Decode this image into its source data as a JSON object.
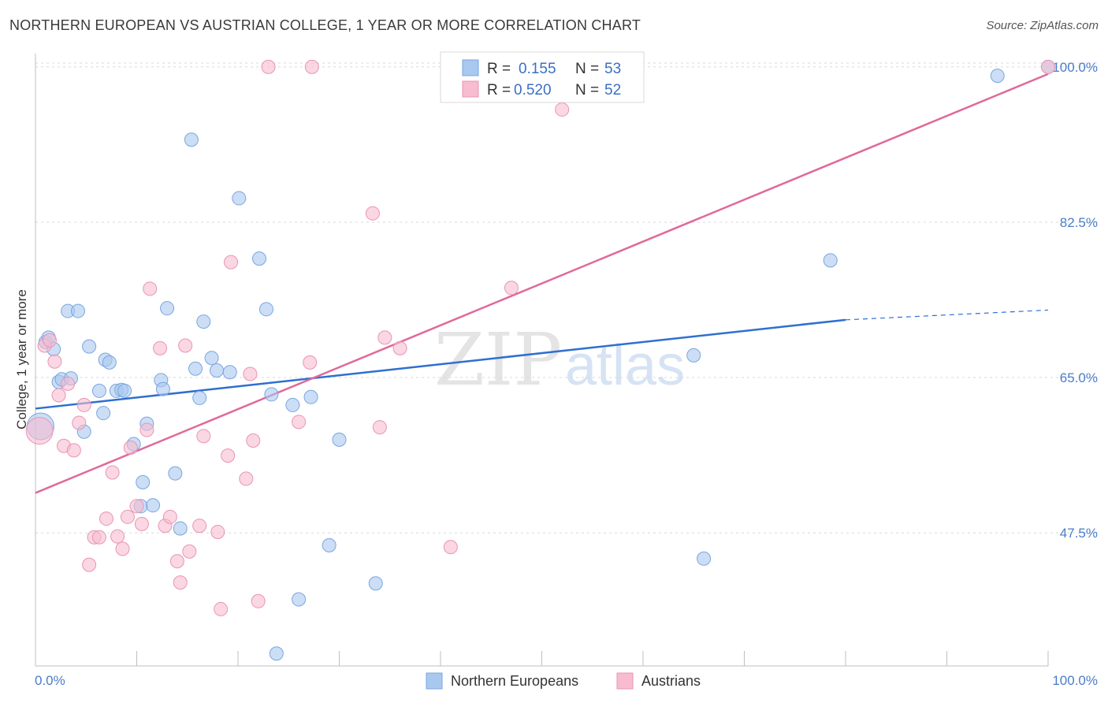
{
  "title": "NORTHERN EUROPEAN VS AUSTRIAN COLLEGE, 1 YEAR OR MORE CORRELATION CHART",
  "source": "Source: ZipAtlas.com",
  "watermark": {
    "zip": "ZIP",
    "atlas": "atlas"
  },
  "colors": {
    "blue_fill": "#a9c8f0",
    "blue_stroke": "#7aa6de",
    "blue_line": "#2f6fd0",
    "pink_fill": "#f7bcd0",
    "pink_stroke": "#e995b3",
    "pink_line": "#e0699a",
    "grid": "#d8d8d8",
    "tick_text": "#4a7cc9"
  },
  "stats": [
    {
      "series": "Northern Europeans",
      "r_label": "R =",
      "r_value": "0.155",
      "n_label": "N =",
      "n_value": "53"
    },
    {
      "series": "Austrians",
      "r_label": "R =",
      "r_value": "0.520",
      "n_label": "N =",
      "n_value": "52"
    }
  ],
  "chart_data": {
    "type": "scatter",
    "title": "NORTHERN EUROPEAN VS AUSTRIAN COLLEGE, 1 YEAR OR MORE CORRELATION CHART",
    "xlabel": "",
    "ylabel": "College, 1 year or more",
    "xlim": [
      0,
      100
    ],
    "ylim": [
      32.5,
      101.5
    ],
    "x_tick_labels": [
      "0.0%",
      "100.0%"
    ],
    "y_ticks": [
      47.5,
      65.0,
      82.5,
      100.0
    ],
    "y_tick_labels": [
      "47.5%",
      "65.0%",
      "82.5%",
      "100.0%"
    ],
    "grid": "horizontal dashed",
    "legend_position": "bottom-center",
    "series": [
      {
        "name": "Northern Europeans",
        "color": "#a9c8f0",
        "trend": {
          "x": [
            0,
            80
          ],
          "y": [
            61.5,
            71.5
          ],
          "dashed_to": [
            100,
            72.6
          ]
        },
        "points": [
          [
            0.5,
            59.5
          ],
          [
            1.0,
            69.0
          ],
          [
            1.3,
            69.5
          ],
          [
            1.8,
            68.2
          ],
          [
            2.3,
            64.5
          ],
          [
            2.6,
            64.8
          ],
          [
            3.2,
            72.5
          ],
          [
            3.5,
            64.9
          ],
          [
            4.2,
            72.5
          ],
          [
            4.8,
            58.9
          ],
          [
            5.3,
            68.5
          ],
          [
            6.3,
            63.5
          ],
          [
            6.7,
            61.0
          ],
          [
            6.9,
            67.0
          ],
          [
            7.3,
            66.7
          ],
          [
            8.0,
            63.5
          ],
          [
            8.5,
            63.6
          ],
          [
            8.8,
            63.5
          ],
          [
            9.7,
            57.5
          ],
          [
            10.4,
            50.5
          ],
          [
            10.6,
            53.2
          ],
          [
            11.0,
            59.8
          ],
          [
            11.6,
            50.6
          ],
          [
            12.4,
            64.7
          ],
          [
            12.6,
            63.7
          ],
          [
            13.0,
            72.8
          ],
          [
            13.8,
            54.2
          ],
          [
            14.3,
            48.0
          ],
          [
            15.4,
            91.8
          ],
          [
            15.8,
            66.0
          ],
          [
            16.2,
            62.7
          ],
          [
            16.6,
            71.3
          ],
          [
            17.4,
            67.2
          ],
          [
            17.9,
            65.8
          ],
          [
            19.2,
            65.6
          ],
          [
            20.1,
            85.2
          ],
          [
            22.1,
            78.4
          ],
          [
            22.8,
            72.7
          ],
          [
            23.3,
            63.1
          ],
          [
            23.8,
            33.9
          ],
          [
            25.4,
            61.9
          ],
          [
            26.0,
            40.0
          ],
          [
            27.2,
            62.8
          ],
          [
            29.0,
            46.1
          ],
          [
            30.0,
            58.0
          ],
          [
            33.6,
            41.8
          ],
          [
            41.0,
            100.0
          ],
          [
            51.0,
            100.0
          ],
          [
            65.0,
            67.5
          ],
          [
            66.0,
            44.6
          ],
          [
            78.5,
            78.2
          ],
          [
            100.0,
            100.0
          ],
          [
            95.0,
            99.0
          ]
        ]
      },
      {
        "name": "Austrians",
        "color": "#f7bcd0",
        "trend": {
          "x": [
            0,
            100
          ],
          "y": [
            52.0,
            99.2
          ]
        },
        "points": [
          [
            0.4,
            59.0
          ],
          [
            0.9,
            68.6
          ],
          [
            1.4,
            69.2
          ],
          [
            1.9,
            66.8
          ],
          [
            2.3,
            63.0
          ],
          [
            2.8,
            57.3
          ],
          [
            3.2,
            64.3
          ],
          [
            3.8,
            56.8
          ],
          [
            4.3,
            59.9
          ],
          [
            4.8,
            61.9
          ],
          [
            5.3,
            43.9
          ],
          [
            5.8,
            47.0
          ],
          [
            6.3,
            47.0
          ],
          [
            7.0,
            49.1
          ],
          [
            7.6,
            54.3
          ],
          [
            8.1,
            47.1
          ],
          [
            8.6,
            45.7
          ],
          [
            9.1,
            49.3
          ],
          [
            9.4,
            57.1
          ],
          [
            10.0,
            50.5
          ],
          [
            10.5,
            48.5
          ],
          [
            11.0,
            59.1
          ],
          [
            11.3,
            75.0
          ],
          [
            12.3,
            68.3
          ],
          [
            12.8,
            48.3
          ],
          [
            13.3,
            49.3
          ],
          [
            14.0,
            44.3
          ],
          [
            14.3,
            41.9
          ],
          [
            14.8,
            68.6
          ],
          [
            15.2,
            45.4
          ],
          [
            16.2,
            48.3
          ],
          [
            16.6,
            58.4
          ],
          [
            18.0,
            47.6
          ],
          [
            18.3,
            38.9
          ],
          [
            19.0,
            56.2
          ],
          [
            19.3,
            78.0
          ],
          [
            20.8,
            53.6
          ],
          [
            21.2,
            65.4
          ],
          [
            21.5,
            57.9
          ],
          [
            22.0,
            39.8
          ],
          [
            23.0,
            100.0
          ],
          [
            26.0,
            60.0
          ],
          [
            27.1,
            66.7
          ],
          [
            27.3,
            100.0
          ],
          [
            33.3,
            83.5
          ],
          [
            34.0,
            59.4
          ],
          [
            34.5,
            69.5
          ],
          [
            36.0,
            68.3
          ],
          [
            41.0,
            45.9
          ],
          [
            47.0,
            75.1
          ],
          [
            52.0,
            95.2
          ],
          [
            100.0,
            100.0
          ]
        ]
      }
    ]
  },
  "legend": [
    {
      "label": "Northern Europeans",
      "color": "#a9c8f0"
    },
    {
      "label": "Austrians",
      "color": "#f7bcd0"
    }
  ]
}
